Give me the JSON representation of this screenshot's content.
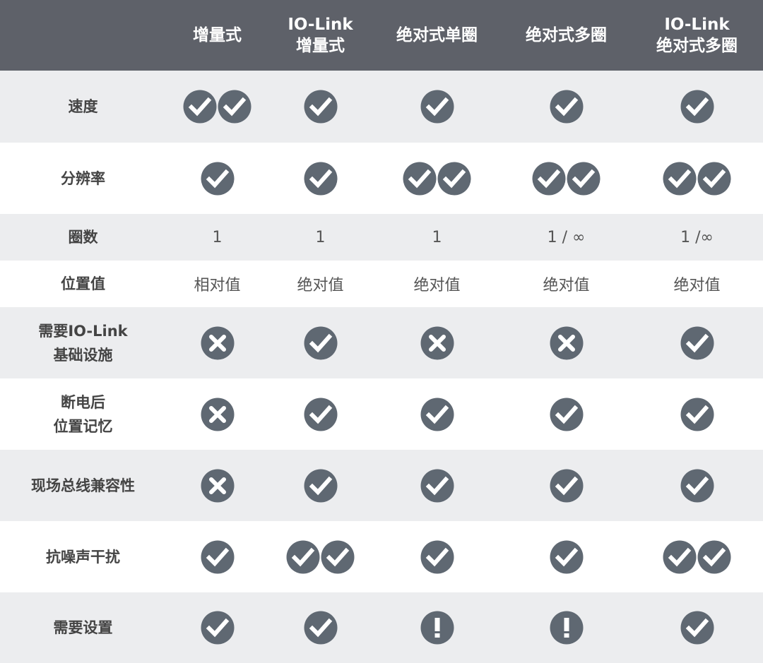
{
  "colors": {
    "header_bg": "#5e6169",
    "row_gray": "#ecedef",
    "icon": "#5f6872"
  },
  "header": [
    "",
    "增量式",
    "IO-Link\n增量式",
    "绝对式单圈",
    "绝对式多圈",
    "IO-Link\n绝对式多圈"
  ],
  "rows": [
    {
      "label": "速度",
      "cells": [
        "check-double",
        "check",
        "check",
        "check",
        "check"
      ]
    },
    {
      "label": "分辨率",
      "cells": [
        "check",
        "check",
        "check-double",
        "check-double",
        "check-double"
      ]
    },
    {
      "label": "圈数",
      "cells": [
        "1",
        "1",
        "1",
        "1 / ∞",
        "1 /∞"
      ]
    },
    {
      "label": "位置值",
      "cells": [
        "相对值",
        "绝对值",
        "绝对值",
        "绝对值",
        "绝对值"
      ]
    },
    {
      "label": "需要IO-Link\n基础设施",
      "cells": [
        "cross",
        "check",
        "cross",
        "cross",
        "check"
      ]
    },
    {
      "label": "断电后\n位置记忆",
      "cells": [
        "cross",
        "check",
        "check",
        "check",
        "check"
      ]
    },
    {
      "label": "现场总线兼容性",
      "cells": [
        "cross",
        "check",
        "check",
        "check",
        "check"
      ]
    },
    {
      "label": "抗噪声干扰",
      "cells": [
        "check",
        "check-double",
        "check",
        "check",
        "check-double"
      ]
    },
    {
      "label": "需要设置",
      "cells": [
        "check",
        "check",
        "warning",
        "warning",
        "check"
      ]
    }
  ]
}
